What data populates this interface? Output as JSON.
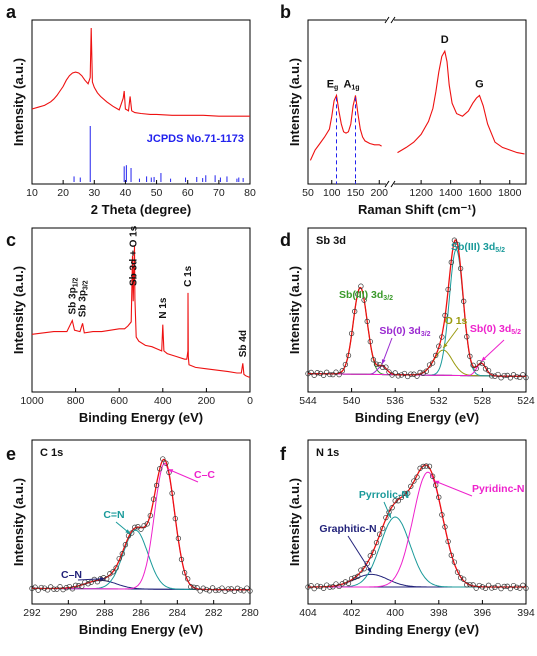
{
  "figure": {
    "panel_labels": [
      "a",
      "b",
      "c",
      "d",
      "e",
      "f"
    ]
  },
  "colors": {
    "red": "#ee1111",
    "blue": "#2222ee",
    "black": "#111111",
    "green": "#3a9a2a",
    "purple": "#9a2ad0",
    "olive": "#9a9a10",
    "teal": "#1a9a9a",
    "magenta": "#ee22cc",
    "navy": "#22227a",
    "envelope": "#4a2a7a"
  },
  "chart_data": [
    {
      "id": "a",
      "type": "line",
      "xlabel": "2 Theta (degree)",
      "ylabel": "Intensity (a.u.)",
      "xlim": [
        10,
        80
      ],
      "xticks": [
        10,
        20,
        30,
        40,
        50,
        60,
        70,
        80
      ],
      "reference_label": "JCPDS No.71-1173",
      "series": [
        {
          "x": [
            10,
            12,
            14,
            16,
            17,
            18,
            19,
            20,
            21,
            22,
            23,
            24,
            25,
            26,
            27,
            28,
            28.7,
            29,
            29.4,
            30,
            31,
            32,
            34,
            36,
            38,
            39.3,
            39.6,
            40,
            41,
            41.5,
            42,
            43,
            45,
            48,
            50,
            55,
            60,
            65,
            70,
            75,
            80
          ],
          "y": [
            0.1,
            0.12,
            0.14,
            0.18,
            0.21,
            0.25,
            0.3,
            0.35,
            0.42,
            0.47,
            0.5,
            0.51,
            0.5,
            0.47,
            0.42,
            0.38,
            0.45,
            1.0,
            0.4,
            0.34,
            0.28,
            0.24,
            0.18,
            0.13,
            0.09,
            0.22,
            0.3,
            0.1,
            0.08,
            0.24,
            0.08,
            0.06,
            0.05,
            0.04,
            0.04,
            0.03,
            0.03,
            0.03,
            0.02,
            0.02,
            0.02
          ]
        }
      ],
      "reference_peaks": [
        {
          "x": 23.5,
          "h": 0.1
        },
        {
          "x": 25.5,
          "h": 0.08
        },
        {
          "x": 28.7,
          "h": 1.0
        },
        {
          "x": 39.6,
          "h": 0.28
        },
        {
          "x": 40.3,
          "h": 0.3
        },
        {
          "x": 41.8,
          "h": 0.25
        },
        {
          "x": 44.5,
          "h": 0.06
        },
        {
          "x": 46.8,
          "h": 0.1
        },
        {
          "x": 48.3,
          "h": 0.08
        },
        {
          "x": 49.2,
          "h": 0.09
        },
        {
          "x": 51.4,
          "h": 0.16
        },
        {
          "x": 54.5,
          "h": 0.06
        },
        {
          "x": 59.3,
          "h": 0.08
        },
        {
          "x": 62.9,
          "h": 0.09
        },
        {
          "x": 64.8,
          "h": 0.07
        },
        {
          "x": 65.8,
          "h": 0.12
        },
        {
          "x": 68.8,
          "h": 0.12
        },
        {
          "x": 70.5,
          "h": 0.08
        },
        {
          "x": 72.6,
          "h": 0.1
        },
        {
          "x": 75.8,
          "h": 0.06
        },
        {
          "x": 76.4,
          "h": 0.08
        },
        {
          "x": 77.8,
          "h": 0.07
        }
      ]
    },
    {
      "id": "b",
      "type": "line",
      "xlabel": "Raman Shift (cm⁻¹)",
      "ylabel": "Intensity (a.u.)",
      "xticks_left": [
        50,
        100,
        150,
        200
      ],
      "xticks_right": [
        1200,
        1400,
        1600,
        1800
      ],
      "xlim_left": [
        50,
        210
      ],
      "xlim_right": [
        1030,
        1910
      ],
      "peak_labels": [
        {
          "x": 110,
          "text": "E",
          "sub": "g",
          "panel": "left"
        },
        {
          "x": 150,
          "text": "A",
          "sub": "1g",
          "panel": "left"
        },
        {
          "x": 1360,
          "text": "D",
          "sub": "",
          "panel": "right"
        },
        {
          "x": 1595,
          "text": "G",
          "sub": "",
          "panel": "right"
        }
      ],
      "series_left": {
        "x": [
          55,
          65,
          75,
          85,
          95,
          100,
          105,
          110,
          115,
          120,
          125,
          130,
          135,
          140,
          145,
          150,
          155,
          160,
          165,
          170,
          180,
          190,
          200,
          205
        ],
        "y": [
          0.12,
          0.2,
          0.25,
          0.3,
          0.36,
          0.46,
          0.58,
          0.62,
          0.5,
          0.4,
          0.34,
          0.33,
          0.34,
          0.4,
          0.54,
          0.62,
          0.48,
          0.36,
          0.3,
          0.27,
          0.25,
          0.24,
          0.24,
          0.23
        ]
      },
      "series_right": {
        "x": [
          1040,
          1100,
          1150,
          1200,
          1250,
          1280,
          1300,
          1320,
          1340,
          1360,
          1375,
          1390,
          1410,
          1440,
          1480,
          1520,
          1550,
          1575,
          1595,
          1620,
          1650,
          1700,
          1750,
          1800,
          1850,
          1900
        ],
        "y": [
          0.18,
          0.22,
          0.26,
          0.32,
          0.42,
          0.52,
          0.65,
          0.8,
          0.92,
          0.96,
          0.88,
          0.7,
          0.56,
          0.48,
          0.46,
          0.5,
          0.56,
          0.6,
          0.62,
          0.54,
          0.4,
          0.26,
          0.22,
          0.2,
          0.18,
          0.17
        ]
      }
    },
    {
      "id": "c",
      "type": "line",
      "xlabel": "Binding Energy (eV)",
      "ylabel": "Intensity (a.u.)",
      "xlim": [
        1000,
        0
      ],
      "xticks": [
        1000,
        800,
        600,
        400,
        200,
        0
      ],
      "peak_labels": [
        {
          "x": 815,
          "text": "Sb 3p",
          "sub": "1/2"
        },
        {
          "x": 768,
          "text": "Sb 3p",
          "sub": "3/2"
        },
        {
          "x": 535,
          "text": "Sb 3d + O 1s",
          "sub": ""
        },
        {
          "x": 400,
          "text": "N 1s",
          "sub": ""
        },
        {
          "x": 284.5,
          "text": "C 1s",
          "sub": ""
        },
        {
          "x": 33,
          "text": "Sb 4d",
          "sub": ""
        }
      ],
      "series": [
        {
          "x": [
            1000,
            950,
            900,
            860,
            840,
            815,
            805,
            780,
            768,
            760,
            720,
            680,
            640,
            600,
            575,
            560,
            545,
            539,
            536,
            530,
            528,
            522,
            510,
            480,
            450,
            420,
            405,
            400,
            395,
            380,
            340,
            300,
            290,
            285,
            284.5,
            283,
            280,
            250,
            200,
            150,
            100,
            60,
            40,
            33,
            28,
            20,
            5,
            0
          ],
          "y": [
            0.36,
            0.37,
            0.38,
            0.38,
            0.38,
            0.46,
            0.39,
            0.38,
            0.44,
            0.37,
            0.38,
            0.38,
            0.39,
            0.4,
            0.4,
            0.42,
            0.45,
            0.93,
            0.6,
            1.0,
            0.62,
            0.34,
            0.31,
            0.28,
            0.27,
            0.25,
            0.24,
            0.43,
            0.24,
            0.22,
            0.2,
            0.18,
            0.18,
            0.24,
            0.66,
            0.2,
            0.14,
            0.12,
            0.11,
            0.1,
            0.09,
            0.08,
            0.08,
            0.15,
            0.07,
            0.06,
            0.05,
            0.05
          ]
        }
      ]
    },
    {
      "id": "d",
      "type": "line",
      "title": "Sb 3d",
      "xlabel": "Binding Energy (eV)",
      "ylabel": "Intensity (a.u.)",
      "xlim": [
        544,
        524
      ],
      "xticks": [
        544,
        540,
        536,
        532,
        528,
        524
      ],
      "components": [
        {
          "label": "Sb(III) 3d",
          "sub": "3/2",
          "center": 539.2,
          "height": 0.62,
          "fwhm": 1.5,
          "color": "green"
        },
        {
          "label": "Sb(0) 3d",
          "sub": "3/2",
          "center": 537.2,
          "height": 0.06,
          "fwhm": 1.0,
          "color": "purple"
        },
        {
          "label": "O 1s",
          "sub": "",
          "center": 531.6,
          "height": 0.18,
          "fwhm": 2.0,
          "color": "olive"
        },
        {
          "label": "Sb(III) 3d",
          "sub": "5/2",
          "center": 530.4,
          "height": 0.9,
          "fwhm": 1.5,
          "color": "teal"
        },
        {
          "label": "Sb(0) 3d",
          "sub": "5/2",
          "center": 528.1,
          "height": 0.09,
          "fwhm": 1.0,
          "color": "magenta"
        }
      ],
      "baseline": {
        "x": [
          544,
          524
        ],
        "y": [
          0.06,
          0.04
        ]
      }
    },
    {
      "id": "e",
      "type": "line",
      "title": "C 1s",
      "xlabel": "Binding Energy (eV)",
      "ylabel": "Intensity (a.u.)",
      "xlim": [
        292,
        280
      ],
      "xticks": [
        292,
        290,
        288,
        286,
        284,
        282,
        280
      ],
      "components": [
        {
          "label": "C–N",
          "sub": "",
          "center": 288.2,
          "height": 0.06,
          "fwhm": 2.0,
          "color": "navy"
        },
        {
          "label": "C=N",
          "sub": "",
          "center": 286.3,
          "height": 0.42,
          "fwhm": 1.6,
          "color": "teal"
        },
        {
          "label": "C–C",
          "sub": "",
          "center": 284.7,
          "height": 0.9,
          "fwhm": 1.3,
          "color": "magenta"
        }
      ],
      "baseline": {
        "x": [
          292,
          280
        ],
        "y": [
          0.04,
          0.03
        ]
      }
    },
    {
      "id": "f",
      "type": "line",
      "title": "N 1s",
      "xlabel": "Binding Energy (eV)",
      "ylabel": "Intensity (a.u.)",
      "xlim": [
        404,
        394
      ],
      "xticks": [
        404,
        402,
        400,
        398,
        396,
        394
      ],
      "components": [
        {
          "label": "Graphitic-N",
          "sub": "",
          "center": 401.1,
          "height": 0.09,
          "fwhm": 1.8,
          "color": "navy"
        },
        {
          "label": "Pyrrolic-N",
          "sub": "",
          "center": 400.0,
          "height": 0.5,
          "fwhm": 1.6,
          "color": "teal"
        },
        {
          "label": "Pyridinc-N",
          "sub": "",
          "center": 398.5,
          "height": 0.82,
          "fwhm": 1.6,
          "color": "magenta"
        }
      ],
      "baseline": {
        "x": [
          404,
          394
        ],
        "y": [
          0.05,
          0.05
        ]
      }
    }
  ]
}
